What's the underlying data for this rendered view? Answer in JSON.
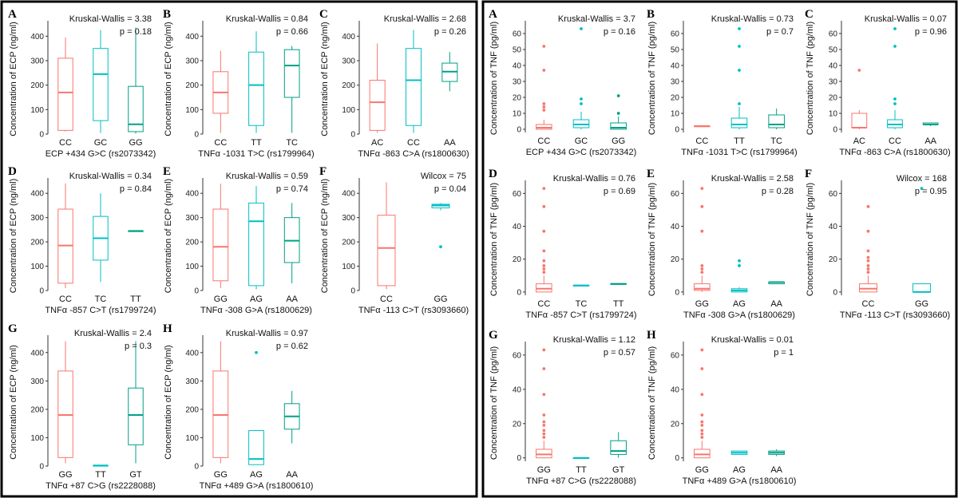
{
  "colors": [
    "#F8766D",
    "#00BFC4",
    "#00A087"
  ],
  "chart_data": [
    {
      "type": "box",
      "figure": "ECP",
      "letter": "A",
      "ylabel": "Concentration of ECP (ng/ml)",
      "xlabel": "ECP +434 G>C (rs2073342)",
      "ylim": [
        0,
        450
      ],
      "yticks": [
        0,
        100,
        200,
        300,
        400
      ],
      "test": "Kruskal-Wallis = 3.38",
      "p": "p = 0.18",
      "groups": [
        {
          "label": "CC",
          "whislo": 10,
          "q1": 15,
          "med": 170,
          "q3": 310,
          "whishi": 395,
          "out": []
        },
        {
          "label": "GC",
          "whislo": 5,
          "q1": 55,
          "med": 245,
          "q3": 350,
          "whishi": 425,
          "out": []
        },
        {
          "label": "GG",
          "whislo": 2,
          "q1": 10,
          "med": 40,
          "q3": 195,
          "whishi": 435,
          "out": []
        }
      ]
    },
    {
      "type": "box",
      "figure": "ECP",
      "letter": "B",
      "ylabel": "Concentration of ECP (ng/ml)",
      "xlabel": "TNFα -1031 T>C (rs1799964)",
      "ylim": [
        0,
        450
      ],
      "yticks": [
        0,
        100,
        200,
        300,
        400
      ],
      "test": "Kruskal-Wallis = 0.84",
      "p": "p = 0.66",
      "groups": [
        {
          "label": "CC",
          "whislo": 5,
          "q1": 85,
          "med": 170,
          "q3": 255,
          "whishi": 340,
          "out": []
        },
        {
          "label": "TT",
          "whislo": 5,
          "q1": 35,
          "med": 200,
          "q3": 335,
          "whishi": 420,
          "out": []
        },
        {
          "label": "TC",
          "whislo": 5,
          "q1": 150,
          "med": 280,
          "q3": 345,
          "whishi": 360,
          "out": []
        }
      ]
    },
    {
      "type": "box",
      "figure": "ECP",
      "letter": "C",
      "ylabel": "Concentration of ECP (ng/ml)",
      "xlabel": "TNFα -863 C>A (rs1800630)",
      "ylim": [
        0,
        450
      ],
      "yticks": [
        0,
        100,
        200,
        300,
        400
      ],
      "test": "Kruskal-Wallis = 2.68",
      "p": "p = 0.26",
      "groups": [
        {
          "label": "AC",
          "whislo": 5,
          "q1": 15,
          "med": 130,
          "q3": 220,
          "whishi": 370,
          "out": []
        },
        {
          "label": "CC",
          "whislo": 5,
          "q1": 35,
          "med": 220,
          "q3": 350,
          "whishi": 425,
          "out": []
        },
        {
          "label": "AA",
          "whislo": 175,
          "q1": 215,
          "med": 255,
          "q3": 290,
          "whishi": 335,
          "out": []
        }
      ]
    },
    {
      "type": "box",
      "figure": "ECP",
      "letter": "D",
      "ylabel": "Concentration of ECP (ng/ml)",
      "xlabel": "TNFα -857 C>T (rs1799724)",
      "ylim": [
        0,
        450
      ],
      "yticks": [
        0,
        100,
        200,
        300,
        400
      ],
      "test": "Kruskal-Wallis = 0.34",
      "p": "p = 0.84",
      "groups": [
        {
          "label": "CC",
          "whislo": 10,
          "q1": 30,
          "med": 185,
          "q3": 335,
          "whishi": 440,
          "out": []
        },
        {
          "label": "TC",
          "whislo": 35,
          "q1": 125,
          "med": 215,
          "q3": 305,
          "whishi": 400,
          "out": []
        },
        {
          "label": "TT",
          "whislo": 245,
          "q1": 245,
          "med": 245,
          "q3": 245,
          "whishi": 245,
          "out": []
        }
      ]
    },
    {
      "type": "box",
      "figure": "ECP",
      "letter": "E",
      "ylabel": "Concentration of ECP (ng/ml)",
      "xlabel": "TNFα -308 G>A (rs1800629)",
      "ylim": [
        0,
        450
      ],
      "yticks": [
        0,
        100,
        200,
        300,
        400
      ],
      "test": "Kruskal-Wallis = 0.59",
      "p": "p = 0.74",
      "groups": [
        {
          "label": "GG",
          "whislo": 10,
          "q1": 40,
          "med": 180,
          "q3": 335,
          "whishi": 440,
          "out": []
        },
        {
          "label": "AG",
          "whislo": 5,
          "q1": 20,
          "med": 285,
          "q3": 360,
          "whishi": 430,
          "out": []
        },
        {
          "label": "AA",
          "whislo": 30,
          "q1": 115,
          "med": 205,
          "q3": 300,
          "whishi": 360,
          "out": []
        }
      ]
    },
    {
      "type": "box",
      "figure": "ECP",
      "letter": "F",
      "ylabel": "Concentration of ECP (ng/ml)",
      "xlabel": "TNFα -113 C>T (rs3093660)",
      "ylim": [
        0,
        450
      ],
      "yticks": [
        0,
        100,
        200,
        300,
        400
      ],
      "test": "Wilcox = 75",
      "p": "p = 0.04",
      "groups": [
        {
          "label": "CC",
          "whislo": 5,
          "q1": 20,
          "med": 175,
          "q3": 310,
          "whishi": 445,
          "out": []
        },
        {
          "label": "GG",
          "whislo": 330,
          "q1": 340,
          "med": 350,
          "q3": 355,
          "whishi": 360,
          "out": [
            180
          ]
        }
      ]
    },
    {
      "type": "box",
      "figure": "ECP",
      "letter": "G",
      "ylabel": "Concentration of ECP (ng/ml)",
      "xlabel": "TNFα +87 C>G (rs2228088)",
      "ylim": [
        0,
        450
      ],
      "yticks": [
        0,
        100,
        200,
        300,
        400
      ],
      "test": "Kruskal-Wallis = 2.4",
      "p": "p = 0.3",
      "groups": [
        {
          "label": "GG",
          "whislo": 10,
          "q1": 30,
          "med": 180,
          "q3": 335,
          "whishi": 440,
          "out": []
        },
        {
          "label": "TT",
          "whislo": 2,
          "q1": 2,
          "med": 2,
          "q3": 2,
          "whishi": 2,
          "out": []
        },
        {
          "label": "GT",
          "whislo": 10,
          "q1": 75,
          "med": 180,
          "q3": 275,
          "whishi": 440,
          "out": []
        }
      ]
    },
    {
      "type": "box",
      "figure": "ECP",
      "letter": "H",
      "ylabel": "Concentration of ECP (ng/ml)",
      "xlabel": "TNFα +489 G>A (rs1800610)",
      "ylim": [
        0,
        450
      ],
      "yticks": [
        0,
        100,
        200,
        300,
        400
      ],
      "test": "Kruskal-Wallis = 0.97",
      "p": "p = 0.62",
      "groups": [
        {
          "label": "GG",
          "whislo": 10,
          "q1": 30,
          "med": 180,
          "q3": 335,
          "whishi": 440,
          "out": []
        },
        {
          "label": "AG",
          "whislo": 5,
          "q1": 5,
          "med": 25,
          "q3": 125,
          "whishi": 125,
          "out": [
            400
          ]
        },
        {
          "label": "AA",
          "whislo": 80,
          "q1": 130,
          "med": 175,
          "q3": 220,
          "whishi": 265,
          "out": []
        }
      ]
    },
    {
      "type": "box",
      "figure": "TNF",
      "letter": "A",
      "ylabel": "Concentration of TNF (pg/ml)",
      "xlabel": "ECP +434 G>C (rs2073342)",
      "ylim": [
        -2,
        66
      ],
      "yticks": [
        0,
        10,
        20,
        30,
        40,
        50,
        60
      ],
      "test": "Kruskal-Wallis = 3.7",
      "p": "p = 0.16",
      "groups": [
        {
          "label": "CC",
          "whislo": 0,
          "q1": 0,
          "med": 1,
          "q3": 3,
          "whishi": 6,
          "out": [
            12,
            14,
            16,
            37,
            52
          ]
        },
        {
          "label": "GC",
          "whislo": 0,
          "q1": 1,
          "med": 3,
          "q3": 6,
          "whishi": 11,
          "out": [
            16,
            19,
            63
          ]
        },
        {
          "label": "GG",
          "whislo": 0,
          "q1": 0,
          "med": 1,
          "q3": 4,
          "whishi": 8,
          "out": [
            10,
            21
          ]
        }
      ]
    },
    {
      "type": "box",
      "figure": "TNF",
      "letter": "B",
      "ylabel": "Concentration of TNF (pg/ml)",
      "xlabel": "TNFα -1031 T>C (rs1799964)",
      "ylim": [
        -2,
        66
      ],
      "yticks": [
        0,
        10,
        20,
        30,
        40,
        50,
        60
      ],
      "test": "Kruskal-Wallis = 0.73",
      "p": "p = 0.7",
      "groups": [
        {
          "label": "CC",
          "whislo": 2,
          "q1": 2,
          "med": 2,
          "q3": 2,
          "whishi": 2,
          "out": []
        },
        {
          "label": "TT",
          "whislo": 0,
          "q1": 1,
          "med": 3,
          "q3": 7,
          "whishi": 14,
          "out": [
            16,
            37,
            52,
            63
          ]
        },
        {
          "label": "TC",
          "whislo": 0,
          "q1": 1,
          "med": 3,
          "q3": 9,
          "whishi": 13,
          "out": []
        }
      ]
    },
    {
      "type": "box",
      "figure": "TNF",
      "letter": "C",
      "ylabel": "Concentration of TNF (pg/ml)",
      "xlabel": "TNFα -863 C>A (rs1800630)",
      "ylim": [
        -2,
        66
      ],
      "yticks": [
        0,
        10,
        20,
        30,
        40,
        50,
        60
      ],
      "test": "Kruskal-Wallis = 0.07",
      "p": "p = 0.96",
      "groups": [
        {
          "label": "AC",
          "whislo": 0,
          "q1": 1,
          "med": 1,
          "q3": 10,
          "whishi": 12,
          "out": [
            37
          ]
        },
        {
          "label": "CC",
          "whislo": 0,
          "q1": 1,
          "med": 3,
          "q3": 6,
          "whishi": 12,
          "out": [
            16,
            19,
            52,
            63
          ]
        },
        {
          "label": "AA",
          "whislo": 2,
          "q1": 3,
          "med": 3,
          "q3": 4,
          "whishi": 4,
          "out": []
        }
      ]
    },
    {
      "type": "box",
      "figure": "TNF",
      "letter": "D",
      "ylabel": "Concentration of TNF (pg/ml)",
      "xlabel": "TNFα -857 C>T (rs1799724)",
      "ylim": [
        -2,
        66
      ],
      "yticks": [
        0,
        20,
        40,
        60
      ],
      "test": "Kruskal-Wallis = 0.76",
      "p": "p = 0.69",
      "groups": [
        {
          "label": "CC",
          "whislo": 0,
          "q1": 0,
          "med": 2,
          "q3": 5,
          "whishi": 10,
          "out": [
            12,
            14,
            16,
            19,
            25,
            37,
            52,
            63
          ]
        },
        {
          "label": "TC",
          "whislo": 4,
          "q1": 4,
          "med": 4,
          "q3": 4,
          "whishi": 4,
          "out": []
        },
        {
          "label": "TT",
          "whislo": 5,
          "q1": 5,
          "med": 5,
          "q3": 5,
          "whishi": 5,
          "out": []
        }
      ]
    },
    {
      "type": "box",
      "figure": "TNF",
      "letter": "E",
      "ylabel": "Concentration of TNF (pg/ml)",
      "xlabel": "TNFα -308 G>A (rs1800629)",
      "ylim": [
        -2,
        66
      ],
      "yticks": [
        0,
        20,
        40,
        60
      ],
      "test": "Kruskal-Wallis = 2.58",
      "p": "p = 0.28",
      "groups": [
        {
          "label": "GG",
          "whislo": 0,
          "q1": 1,
          "med": 2,
          "q3": 5,
          "whishi": 10,
          "out": [
            12,
            14,
            16,
            37,
            52,
            63
          ]
        },
        {
          "label": "AG",
          "whislo": 0,
          "q1": 0,
          "med": 1,
          "q3": 2,
          "whishi": 3,
          "out": [
            16,
            19
          ]
        },
        {
          "label": "AA",
          "whislo": 5,
          "q1": 5,
          "med": 6,
          "q3": 6,
          "whishi": 6,
          "out": []
        }
      ]
    },
    {
      "type": "box",
      "figure": "TNF",
      "letter": "F",
      "ylabel": "Concentration of TNF (pg/ml)",
      "xlabel": "TNFα -113 C>T (rs3093660)",
      "ylim": [
        -2,
        66
      ],
      "yticks": [
        0,
        20,
        40,
        60
      ],
      "test": "Wilcox = 168",
      "p": "p = 0.95",
      "groups": [
        {
          "label": "CC",
          "whislo": 0,
          "q1": 0,
          "med": 2,
          "q3": 5,
          "whishi": 10,
          "out": [
            12,
            14,
            16,
            19,
            21,
            25,
            37,
            52
          ]
        },
        {
          "label": "GG",
          "whislo": 0,
          "q1": 0,
          "med": 0,
          "q3": 5,
          "whishi": 5,
          "out": [
            63
          ]
        }
      ]
    },
    {
      "type": "box",
      "figure": "TNF",
      "letter": "G",
      "ylabel": "Concentration of TNF (pg/ml)",
      "xlabel": "TNFα +87 C>G (rs2228088)",
      "ylim": [
        -2,
        66
      ],
      "yticks": [
        0,
        20,
        40,
        60
      ],
      "test": "Kruskal-Wallis = 1.12",
      "p": "p = 0.57",
      "groups": [
        {
          "label": "GG",
          "whislo": 0,
          "q1": 0,
          "med": 2,
          "q3": 5,
          "whishi": 10,
          "out": [
            12,
            14,
            16,
            19,
            21,
            25,
            37,
            52,
            63
          ]
        },
        {
          "label": "TT",
          "whislo": 0,
          "q1": 0,
          "med": 0,
          "q3": 0,
          "whishi": 0,
          "out": []
        },
        {
          "label": "GT",
          "whislo": 0,
          "q1": 2,
          "med": 4,
          "q3": 10,
          "whishi": 15,
          "out": []
        }
      ]
    },
    {
      "type": "box",
      "figure": "TNF",
      "letter": "H",
      "ylabel": "Concentration of TNF (pg/ml)",
      "xlabel": "TNFα +489 G>A (rs1800610)",
      "ylim": [
        -2,
        66
      ],
      "yticks": [
        0,
        20,
        40,
        60
      ],
      "test": "Kruskal-Wallis = 0.01",
      "p": "p = 1",
      "groups": [
        {
          "label": "GG",
          "whislo": 0,
          "q1": 0,
          "med": 2,
          "q3": 5,
          "whishi": 10,
          "out": [
            12,
            14,
            16,
            19,
            21,
            25,
            37,
            52,
            63
          ]
        },
        {
          "label": "AG",
          "whislo": 2,
          "q1": 2,
          "med": 3,
          "q3": 4,
          "whishi": 4,
          "out": []
        },
        {
          "label": "AA",
          "whislo": 1,
          "q1": 2,
          "med": 3,
          "q3": 4,
          "whishi": 5,
          "out": []
        }
      ]
    }
  ]
}
